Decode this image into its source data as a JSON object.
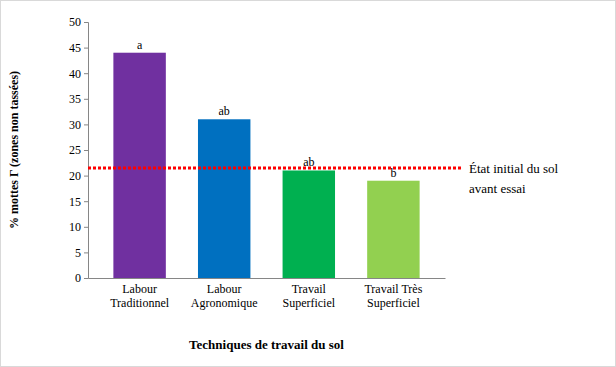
{
  "chart_data": {
    "type": "bar",
    "x_label": "Techniques de travail du sol",
    "y_label": "% mottes Γ (zones non tassées)",
    "categories": [
      "Labour Traditionnel",
      "Labour Agronomique",
      "Travail Superficiel",
      "Travail Très Superficiel"
    ],
    "values": [
      44,
      31,
      21,
      19
    ],
    "colors": [
      "#7030a0",
      "#0070c0",
      "#00b050",
      "#92d050"
    ],
    "annotations": [
      "a",
      "ab",
      "ab",
      "b"
    ],
    "reference_line": {
      "value": 21.5,
      "label": [
        "État initial du sol",
        "avant essai"
      ],
      "color": "#ff0000"
    },
    "ylim": [
      0,
      50
    ],
    "yticks": [
      0,
      5,
      10,
      15,
      20,
      25,
      30,
      35,
      40,
      45,
      50
    ],
    "grid": false
  }
}
